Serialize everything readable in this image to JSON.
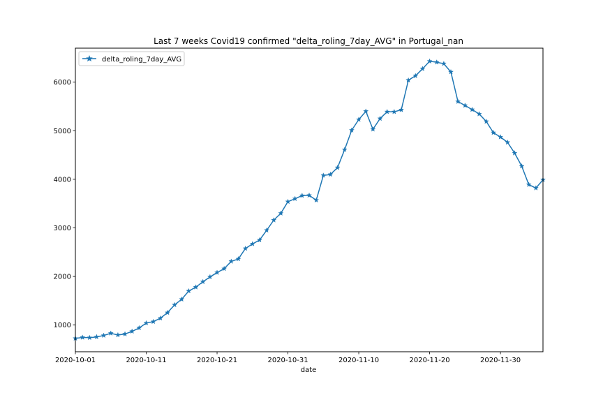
{
  "chart_data": {
    "type": "line",
    "title": "Last 7 weeks Covid19 confirmed \"delta_roling_7day_AVG\" in Portugal_nan",
    "xlabel": "date",
    "ylabel": "",
    "x_start": "2020-10-01",
    "xlim": [
      "2020-10-01",
      "2020-12-06"
    ],
    "ylim": [
      450,
      6700
    ],
    "x_ticks": [
      "2020-10-01",
      "2020-10-11",
      "2020-10-21",
      "2020-10-31",
      "2020-11-10",
      "2020-11-20",
      "2020-11-30"
    ],
    "y_ticks": [
      1000,
      2000,
      3000,
      4000,
      5000,
      6000
    ],
    "legend_position": "top-left",
    "grid": false,
    "series": [
      {
        "name": "delta_roling_7day_AVG",
        "color": "#1f77b4",
        "marker": "star",
        "x": [
          "2020-10-01",
          "2020-10-02",
          "2020-10-03",
          "2020-10-04",
          "2020-10-05",
          "2020-10-06",
          "2020-10-07",
          "2020-10-08",
          "2020-10-09",
          "2020-10-10",
          "2020-10-11",
          "2020-10-12",
          "2020-10-13",
          "2020-10-14",
          "2020-10-15",
          "2020-10-16",
          "2020-10-17",
          "2020-10-18",
          "2020-10-19",
          "2020-10-20",
          "2020-10-21",
          "2020-10-22",
          "2020-10-23",
          "2020-10-24",
          "2020-10-25",
          "2020-10-26",
          "2020-10-27",
          "2020-10-28",
          "2020-10-29",
          "2020-10-30",
          "2020-10-31",
          "2020-11-01",
          "2020-11-02",
          "2020-11-03",
          "2020-11-04",
          "2020-11-05",
          "2020-11-06",
          "2020-11-07",
          "2020-11-08",
          "2020-11-09",
          "2020-11-10",
          "2020-11-11",
          "2020-11-12",
          "2020-11-13",
          "2020-11-14",
          "2020-11-15",
          "2020-11-16",
          "2020-11-17",
          "2020-11-18",
          "2020-11-19",
          "2020-11-20",
          "2020-11-21",
          "2020-11-22",
          "2020-11-23",
          "2020-11-24",
          "2020-11-25",
          "2020-11-26",
          "2020-11-27",
          "2020-11-28",
          "2020-11-29",
          "2020-11-30",
          "2020-12-01",
          "2020-12-02",
          "2020-12-03",
          "2020-12-04",
          "2020-12-05",
          "2020-12-06"
        ],
        "values": [
          725,
          745,
          740,
          755,
          785,
          830,
          795,
          815,
          870,
          940,
          1040,
          1070,
          1140,
          1255,
          1415,
          1530,
          1700,
          1780,
          1890,
          1990,
          2080,
          2160,
          2310,
          2360,
          2575,
          2670,
          2750,
          2950,
          3160,
          3300,
          3540,
          3600,
          3665,
          3670,
          3570,
          4080,
          4100,
          4240,
          4610,
          5010,
          5230,
          5400,
          5030,
          5250,
          5390,
          5390,
          5430,
          6040,
          6130,
          6275,
          6430,
          6410,
          6380,
          6210,
          5600,
          5520,
          5435,
          5345,
          5190,
          4960,
          4870,
          4760,
          4540,
          4270,
          3890,
          3820,
          3990
        ]
      }
    ]
  }
}
